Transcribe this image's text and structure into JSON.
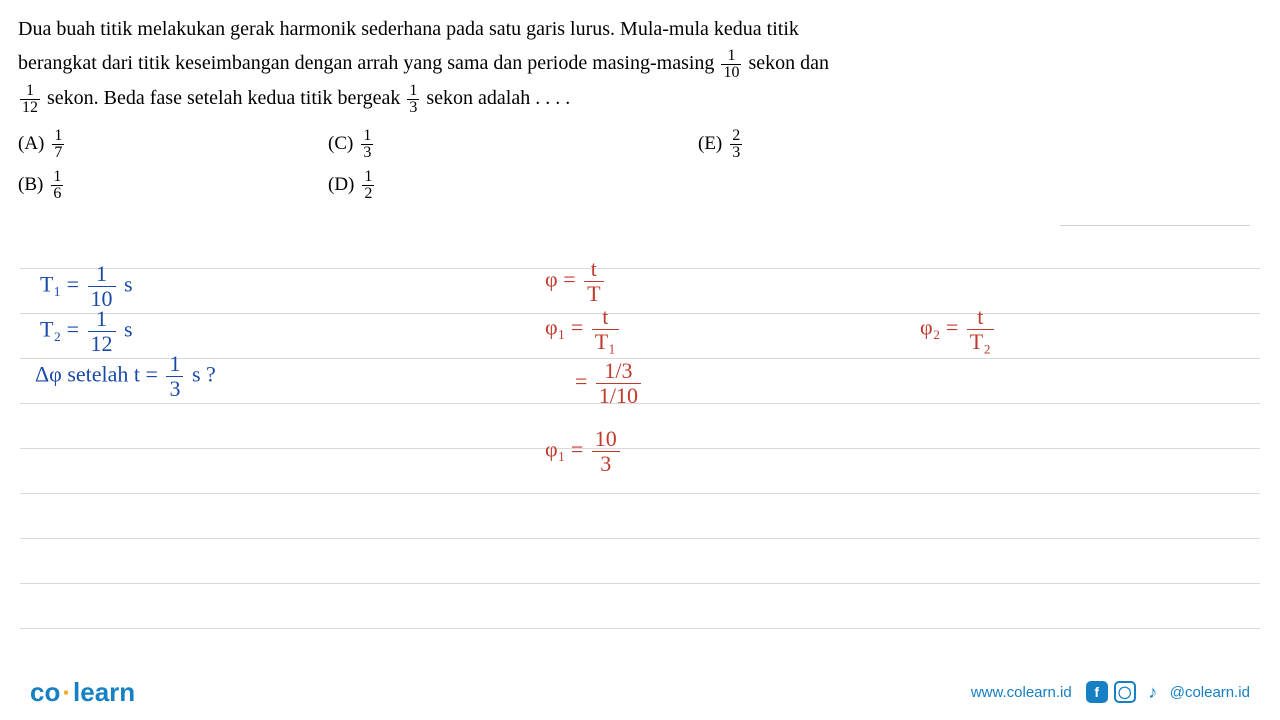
{
  "question": {
    "line1": "Dua buah titik melakukan gerak harmonik sederhana pada satu garis lurus. Mula-mula kedua titik",
    "line2_a": "berangkat dari titik keseimbangan dengan arrah yang sama dan periode masing-masing ",
    "line2_b": " sekon dan",
    "line3_a": " sekon. Beda fase setelah kedua titik bergeak ",
    "line3_b": " sekon adalah . . . .",
    "frac_line2": {
      "num": "1",
      "den": "10"
    },
    "frac_line3a": {
      "num": "1",
      "den": "12"
    },
    "frac_line3b": {
      "num": "1",
      "den": "3"
    }
  },
  "options": {
    "A": {
      "letter": "(A)",
      "num": "1",
      "den": "7"
    },
    "B": {
      "letter": "(B)",
      "num": "1",
      "den": "6"
    },
    "C": {
      "letter": "(C)",
      "num": "1",
      "den": "3"
    },
    "D": {
      "letter": "(D)",
      "num": "1",
      "den": "2"
    },
    "E": {
      "letter": "(E)",
      "num": "2",
      "den": "3"
    }
  },
  "handwriting": {
    "blue": {
      "t1": {
        "label": "T₁ =",
        "num": "1",
        "den": "10",
        "unit": "s"
      },
      "t2": {
        "label": "T₂ =",
        "num": "1",
        "den": "12",
        "unit": "s"
      },
      "dq": {
        "label": "Δφ setelah t =",
        "num": "1",
        "den": "3",
        "unit": "s ?"
      }
    },
    "red": {
      "phi": {
        "lhs": "φ =",
        "num": "t",
        "den": "T"
      },
      "phi1a": {
        "lhs": "φ₁ =",
        "num": "t",
        "den": "T₁"
      },
      "phi1b": {
        "lhs": "=",
        "num": "1/3",
        "den": "1/10"
      },
      "phi1c": {
        "lhs": "φ₁ =",
        "num": "10",
        "den": "3"
      },
      "phi2": {
        "lhs": "φ₂ =",
        "num": "t",
        "den": "T₂"
      }
    }
  },
  "ruling": {
    "lines": [
      268,
      313,
      358,
      403,
      448,
      493,
      538,
      583,
      628
    ],
    "color": "#d9d9d9"
  },
  "footer": {
    "brand_co": "co",
    "brand_learn": "learn",
    "url": "www.colearn.id",
    "handle": "@colearn.id",
    "icons": {
      "fb": "f",
      "ig": "◯",
      "tt": "♪"
    }
  },
  "colors": {
    "text": "#000000",
    "blue_ink": "#1a4aa8",
    "red_ink": "#c0392b",
    "brand": "#1580c3",
    "accent": "#f5a623",
    "rule": "#d9d9d9",
    "bg": "#ffffff"
  }
}
